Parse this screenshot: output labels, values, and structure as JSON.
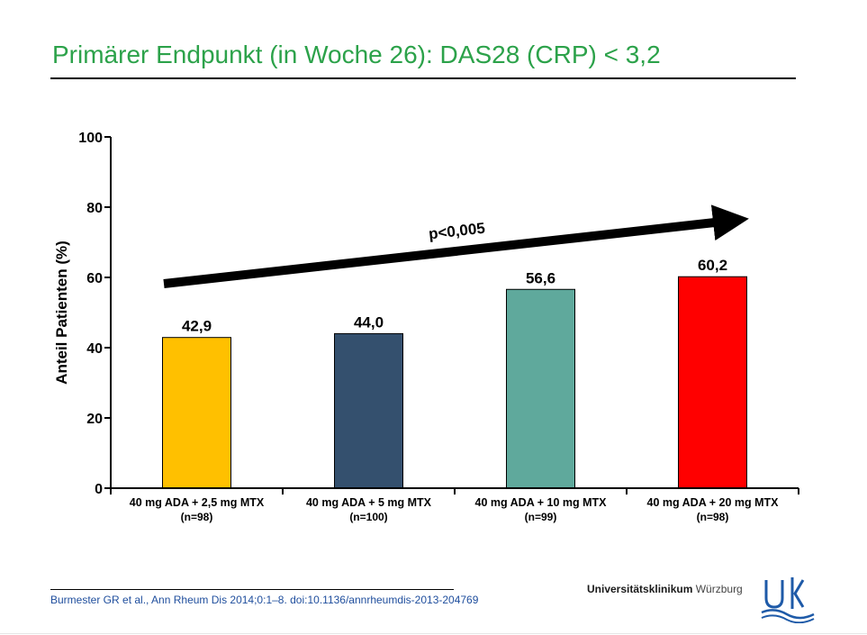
{
  "slide": {
    "title": "Primärer Endpunkt (in Woche 26): DAS28 (CRP) < 3,2",
    "citation": "Burmester GR et al., Ann Rheum Dis 2014;0:1–8. doi:10.1136/annrheumdis-2013-204769"
  },
  "logo": {
    "name_bold": "Universitätsklinikum",
    "name_light": "Würzburg",
    "mark_text": "UK"
  },
  "colors": {
    "title": "#2ca24a",
    "citation": "#1f4e9d",
    "logo_accent": "#1e5aa8",
    "bars": [
      "#ffc000",
      "#34506e",
      "#5fa99c",
      "#ff0000"
    ]
  },
  "chart_data": {
    "type": "bar",
    "ylabel": "Anteil Patienten (%)",
    "xlabel": "",
    "ylim": [
      0,
      100
    ],
    "yticks": [
      0,
      20,
      40,
      60,
      80,
      100
    ],
    "categories": [
      "40 mg ADA + 2,5 mg MTX",
      "40 mg ADA + 5 mg MTX",
      "40 mg ADA + 10 mg MTX",
      "40 mg ADA + 20 mg MTX"
    ],
    "sample_sizes": [
      "(n=98)",
      "(n=100)",
      "(n=99)",
      "(n=98)"
    ],
    "values": [
      42.9,
      44.0,
      56.6,
      60.2
    ],
    "value_labels": [
      "42,9",
      "44,0",
      "56,6",
      "60,2"
    ],
    "annotation": "p<0,005",
    "grid": false,
    "legend": "none"
  }
}
